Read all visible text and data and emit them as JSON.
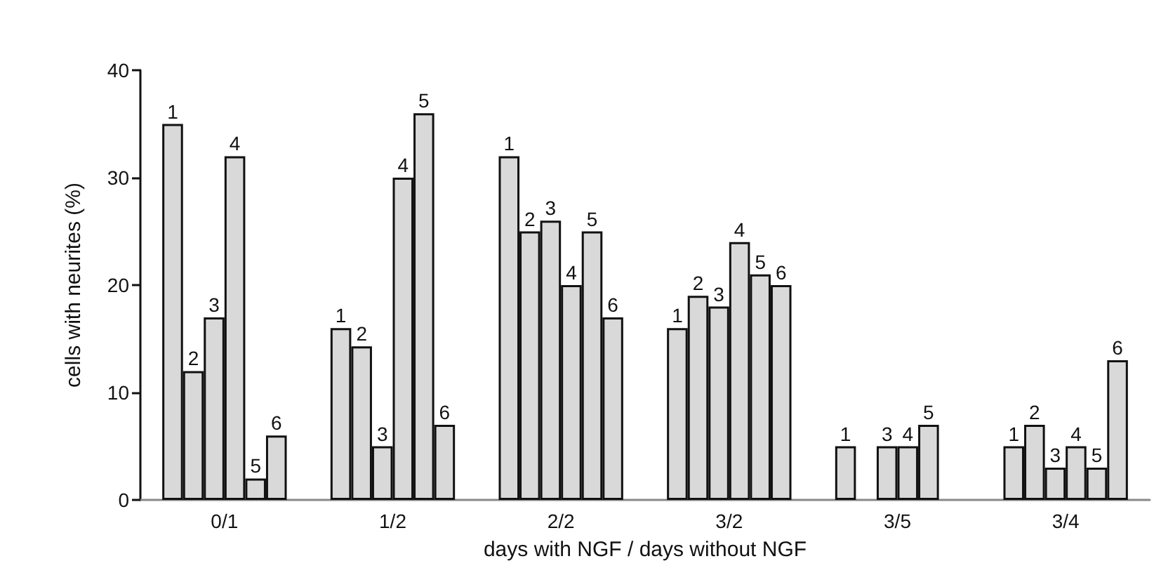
{
  "chart_data": {
    "type": "bar",
    "xlabel": "days with NGF / days without NGF",
    "ylabel": "cells with neurites (%)",
    "categories": [
      "0/1",
      "1/2",
      "2/2",
      "3/2",
      "3/5",
      "3/4"
    ],
    "series": [
      {
        "name": "1",
        "color": "#d9d9d9",
        "values": [
          35,
          16,
          32,
          16,
          5,
          5
        ]
      },
      {
        "name": "2",
        "color": "#d9d9d9",
        "values": [
          12,
          14.3,
          25,
          19,
          null,
          7
        ]
      },
      {
        "name": "3",
        "color": "#d9d9d9",
        "values": [
          17,
          5,
          26,
          18,
          5,
          3
        ]
      },
      {
        "name": "4",
        "color": "#d9d9d9",
        "values": [
          32,
          30,
          20,
          24,
          5,
          5
        ]
      },
      {
        "name": "5",
        "color": "#d9d9d9",
        "values": [
          2,
          36,
          25,
          21,
          7,
          3
        ]
      },
      {
        "name": "6",
        "color": "#d9d9d9",
        "values": [
          6,
          7,
          17,
          20,
          null,
          13
        ]
      }
    ],
    "ylim": [
      0,
      40
    ],
    "yticks": [
      0,
      10,
      20,
      30,
      40
    ],
    "grid": false,
    "legend": false
  }
}
